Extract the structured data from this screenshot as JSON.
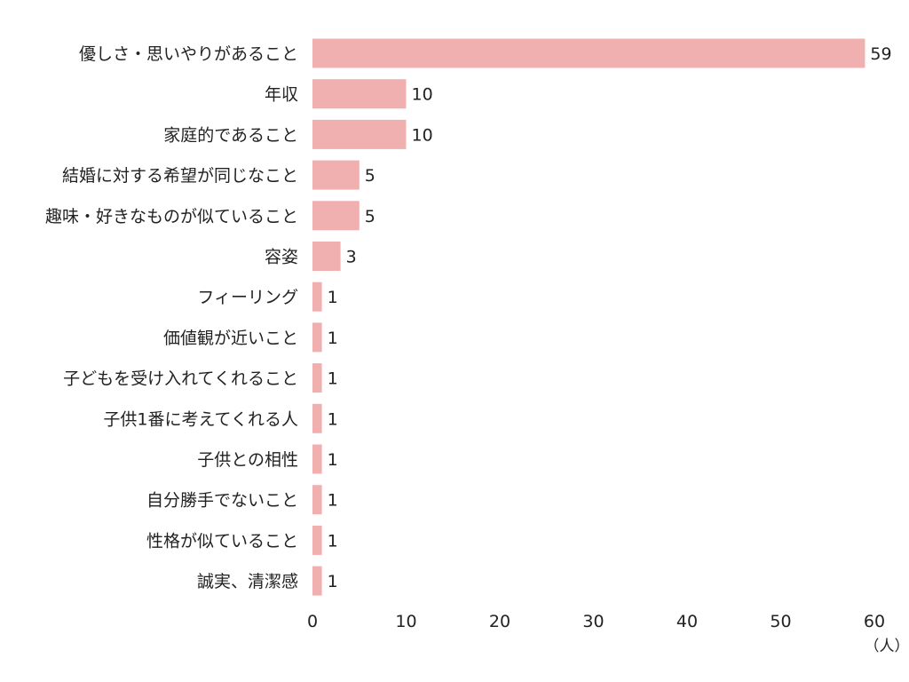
{
  "chart_data": {
    "type": "bar",
    "orientation": "horizontal",
    "categories": [
      "優しさ・思いやりがあること",
      "年収",
      "家庭的であること",
      "結婚に対する希望が同じなこと",
      "趣味・好きなものが似ていること",
      "容姿",
      "フィーリング",
      "価値観が近いこと",
      "子どもを受け入れてくれること",
      "子供1番に考えてくれる人",
      "子供との相性",
      "自分勝手でないこと",
      "性格が似ていること",
      "誠実、清潔感"
    ],
    "values": [
      59,
      10,
      10,
      5,
      5,
      3,
      1,
      1,
      1,
      1,
      1,
      1,
      1,
      1
    ],
    "value_labels": [
      "59",
      "10",
      "10",
      "5",
      "5",
      "3",
      "1",
      "1",
      "1",
      "1",
      "1",
      "1",
      "1",
      "1"
    ],
    "xlim": [
      0,
      60
    ],
    "x_ticks": [
      "0",
      "10",
      "20",
      "30",
      "40",
      "50",
      "60"
    ],
    "x_tick_values": [
      0,
      10,
      20,
      30,
      40,
      50,
      60
    ],
    "unit_label": "（人）",
    "grid": false,
    "bar_color": "#f0b0b0"
  }
}
